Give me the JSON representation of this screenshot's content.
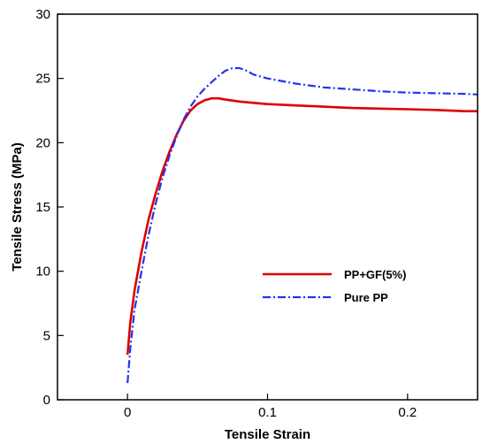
{
  "chart_data": {
    "type": "line",
    "title": "",
    "xlabel": "Tensile Strain",
    "ylabel": "Tensile Stress (MPa)",
    "xlim": [
      -0.05,
      0.25
    ],
    "ylim": [
      0,
      30
    ],
    "x_ticks": [
      0,
      0.1,
      0.2
    ],
    "x_tick_labels": [
      "0",
      "0.1",
      "0.2"
    ],
    "y_ticks": [
      0,
      5,
      10,
      15,
      20,
      25,
      30
    ],
    "y_tick_labels": [
      "0",
      "5",
      "10",
      "15",
      "20",
      "25",
      "30"
    ],
    "grid": false,
    "legend_position": "lower-right",
    "series": [
      {
        "name": "PP+GF(5%)",
        "color": "#dd0000",
        "line_style": "solid",
        "x": [
          0,
          0.002,
          0.005,
          0.01,
          0.015,
          0.02,
          0.025,
          0.03,
          0.035,
          0.04,
          0.045,
          0.05,
          0.055,
          0.06,
          0.065,
          0.07,
          0.08,
          0.09,
          0.1,
          0.12,
          0.14,
          0.16,
          0.18,
          0.2,
          0.22,
          0.24,
          0.25
        ],
        "y": [
          3.5,
          6.0,
          8.5,
          11.5,
          14.0,
          16.0,
          17.8,
          19.3,
          20.6,
          21.7,
          22.5,
          23.0,
          23.3,
          23.45,
          23.45,
          23.35,
          23.2,
          23.1,
          23.0,
          22.9,
          22.8,
          22.7,
          22.65,
          22.6,
          22.55,
          22.45,
          22.45
        ]
      },
      {
        "name": "Pure PP",
        "color": "#2233ee",
        "line_style": "dashdot",
        "x": [
          0,
          0.002,
          0.005,
          0.01,
          0.015,
          0.02,
          0.025,
          0.03,
          0.035,
          0.04,
          0.045,
          0.05,
          0.055,
          0.06,
          0.065,
          0.07,
          0.075,
          0.08,
          0.085,
          0.09,
          0.1,
          0.12,
          0.14,
          0.16,
          0.18,
          0.2,
          0.22,
          0.24,
          0.25
        ],
        "y": [
          1.3,
          4.0,
          7.0,
          10.0,
          12.8,
          15.2,
          17.3,
          19.0,
          20.5,
          21.8,
          22.8,
          23.6,
          24.2,
          24.7,
          25.2,
          25.6,
          25.8,
          25.8,
          25.6,
          25.3,
          25.0,
          24.6,
          24.3,
          24.15,
          24.0,
          23.9,
          23.85,
          23.8,
          23.75
        ]
      }
    ]
  }
}
